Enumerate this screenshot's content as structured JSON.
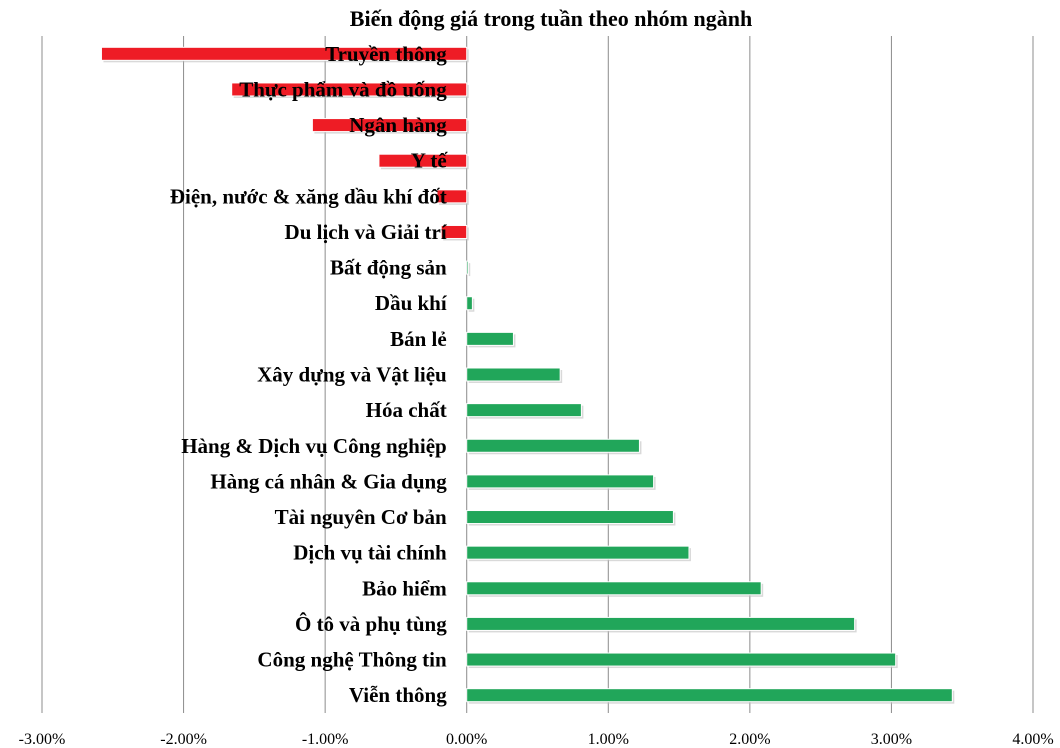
{
  "chart_data": {
    "type": "bar",
    "orientation": "horizontal",
    "title": "Biến động giá trong tuần theo nhóm ngành",
    "xlabel": "",
    "ylabel": "",
    "xlim": [
      -3.0,
      4.0
    ],
    "x_ticks": [
      -3,
      -2,
      -1,
      0,
      1,
      2,
      3,
      4
    ],
    "x_tick_labels": [
      "-3.00%",
      "-2.00%",
      "-1.00%",
      "0.00%",
      "1.00%",
      "2.00%",
      "3.00%",
      "4.00%"
    ],
    "grid": "vertical",
    "legend": "none",
    "positive_color": "#21a65a",
    "negative_color": "#ee1c25",
    "categories": [
      "Truyền thông",
      "Thực phẩm và đồ uống",
      "Ngân hàng",
      "Y tế",
      "Điện, nước & xăng dầu khí đốt",
      "Du lịch và Giải trí",
      "Bất động sản",
      "Dầu khí",
      "Bán lẻ",
      "Xây dựng và Vật liệu",
      "Hóa chất",
      "Hàng & Dịch vụ Công nghiệp",
      "Hàng cá nhân & Gia dụng",
      "Tài nguyên Cơ bản",
      "Dịch vụ tài chính",
      "Bảo hiểm",
      "Ô tô và phụ tùng",
      "Công nghệ Thông tin",
      "Viễn thông"
    ],
    "values": [
      -2.58,
      -1.66,
      -1.09,
      -0.62,
      -0.21,
      -0.18,
      0.01,
      0.04,
      0.33,
      0.66,
      0.81,
      1.22,
      1.32,
      1.46,
      1.57,
      2.08,
      2.74,
      3.03,
      3.43
    ]
  }
}
